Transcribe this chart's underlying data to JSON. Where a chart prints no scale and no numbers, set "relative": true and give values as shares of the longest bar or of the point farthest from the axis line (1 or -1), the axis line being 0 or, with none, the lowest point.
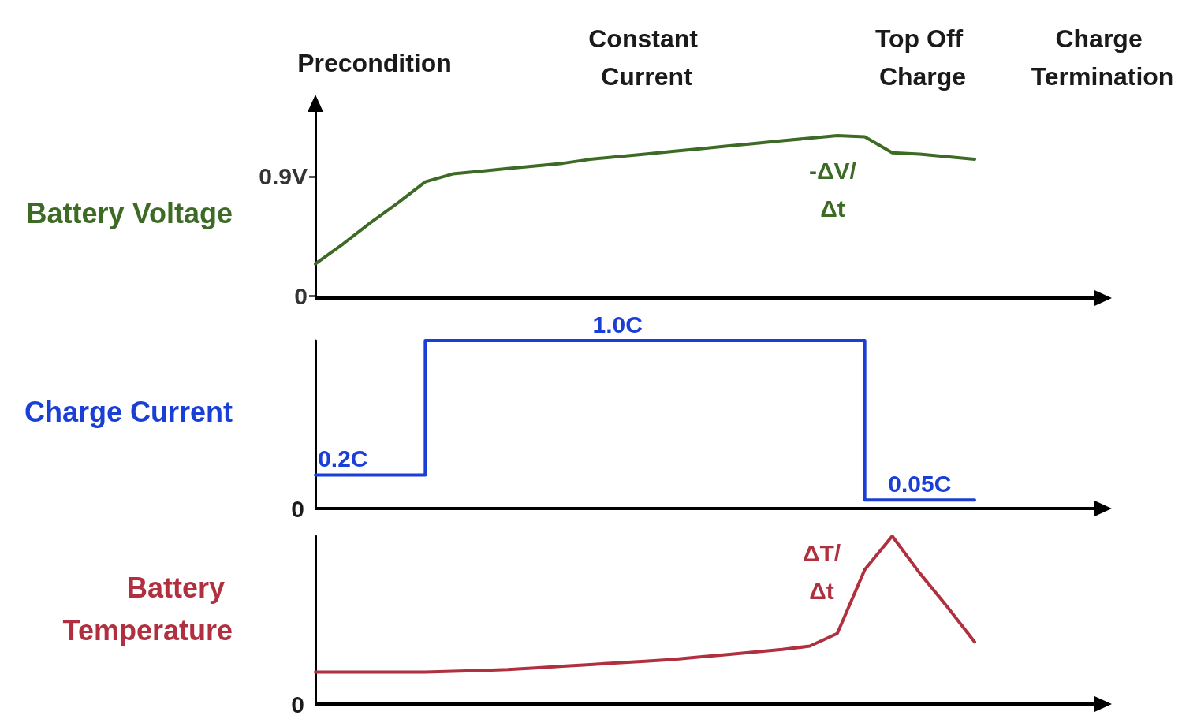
{
  "chart_data": [
    {
      "type": "line",
      "ylabel": "Battery Voltage",
      "color": "#3d6b25",
      "marker": "none",
      "tick_labels": "y",
      "categories": [
        null,
        null,
        null,
        null,
        null,
        null,
        null,
        null,
        null,
        null,
        null,
        null,
        null,
        null,
        null,
        null,
        null,
        null,
        null,
        null,
        null,
        null,
        null,
        null,
        null
      ],
      "values": [
        0.24,
        0.39,
        0.55,
        0.7,
        0.86,
        0.92,
        0.94,
        0.96,
        0.98,
        1.0,
        1.03,
        1.05,
        1.07,
        1.09,
        1.11,
        1.13,
        1.15,
        1.17,
        1.19,
        1.21,
        1.2,
        1.08,
        1.07,
        1.05,
        1.03
      ],
      "ylim": [
        0,
        1.4
      ],
      "yticks": [
        0,
        {
          "value": 0.9,
          "label": "0.9V"
        }
      ],
      "annotations": [
        "Precondition",
        "Constant Current",
        "Top Off Charge",
        "Charge Termination",
        "-ΔV/Δt"
      ]
    },
    {
      "type": "step",
      "ylabel": "Charge Current",
      "color": "#1a3fd6",
      "marker": "none",
      "tick_labels": false,
      "categories": [
        null,
        null,
        null,
        null,
        null,
        null,
        null,
        null,
        null,
        null,
        null,
        null,
        null,
        null,
        null,
        null,
        null,
        null,
        null,
        null,
        null,
        null,
        null,
        null,
        null
      ],
      "values": [
        0.2,
        0.2,
        0.2,
        0.2,
        1.0,
        1.0,
        1.0,
        1.0,
        1.0,
        1.0,
        1.0,
        1.0,
        1.0,
        1.0,
        1.0,
        1.0,
        1.0,
        1.0,
        1.0,
        1.0,
        0.05,
        0.05,
        0.05,
        0.05,
        0.05
      ],
      "value_labels": [
        null,
        "0.2C",
        null,
        null,
        null,
        null,
        null,
        null,
        null,
        null,
        null,
        "1.0C",
        null,
        null,
        null,
        null,
        null,
        null,
        null,
        null,
        null,
        null,
        "0.05C",
        null,
        null
      ],
      "annotations": [
        "0"
      ]
    },
    {
      "type": "line",
      "ylabel": "Battery Temperature",
      "color": "#b0303f",
      "marker": "none",
      "relative": true,
      "tick_labels": false,
      "categories": [
        null,
        null,
        null,
        null,
        null,
        null,
        null,
        null,
        null,
        null,
        null,
        null,
        null,
        null,
        null,
        null,
        null,
        null,
        null,
        null,
        null,
        null,
        null,
        null,
        null
      ],
      "values": [
        0.19,
        0.19,
        0.19,
        0.19,
        0.19,
        0.195,
        0.2,
        0.205,
        0.215,
        0.225,
        0.235,
        0.245,
        0.255,
        0.265,
        0.28,
        0.295,
        0.31,
        0.325,
        0.345,
        0.42,
        0.8,
        1.0,
        0.78,
        0.58,
        0.37
      ],
      "annotations": [
        "ΔT/Δt",
        "0"
      ]
    }
  ]
}
